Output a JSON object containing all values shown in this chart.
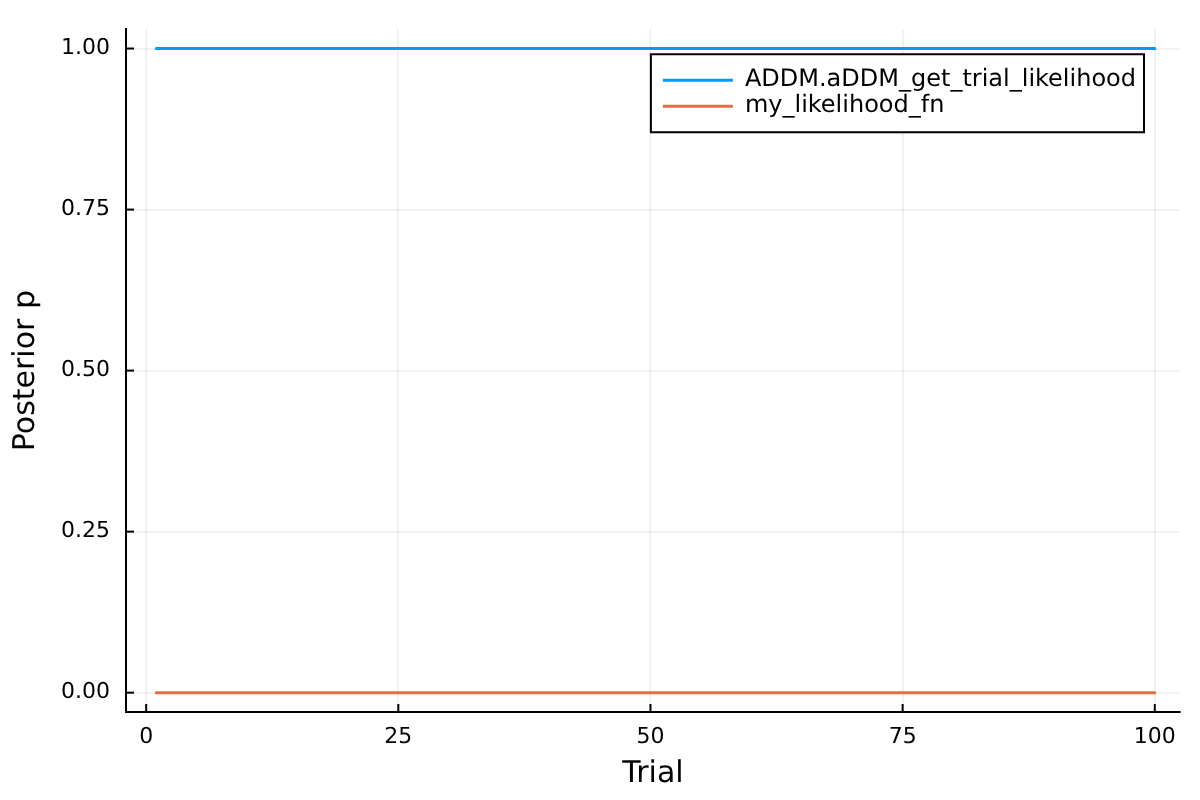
{
  "chart_data": {
    "type": "line",
    "xlabel": "Trial",
    "ylabel": "Posterior p",
    "x": [
      1,
      100
    ],
    "series": [
      {
        "name": "ADDM.aDDM_get_trial_likelihood",
        "color": "#009af9",
        "values": [
          1,
          1
        ]
      },
      {
        "name": "my_likelihood_fn",
        "color": "#e26f46",
        "values": [
          0,
          0
        ]
      }
    ],
    "xlim": [
      -2,
      102.5
    ],
    "xticks": [
      0,
      25,
      50,
      75,
      100
    ],
    "ylim": [
      -0.03,
      1.03
    ],
    "yticks": [
      {
        "value": 0,
        "label": "0.00"
      },
      {
        "value": 0.25,
        "label": "0.25"
      },
      {
        "value": 0.5,
        "label": "0.50"
      },
      {
        "value": 0.75,
        "label": "0.75"
      },
      {
        "value": 1,
        "label": "1.00"
      }
    ],
    "grid": true,
    "legend": "top right",
    "marker": "none",
    "line_style": "solid"
  }
}
